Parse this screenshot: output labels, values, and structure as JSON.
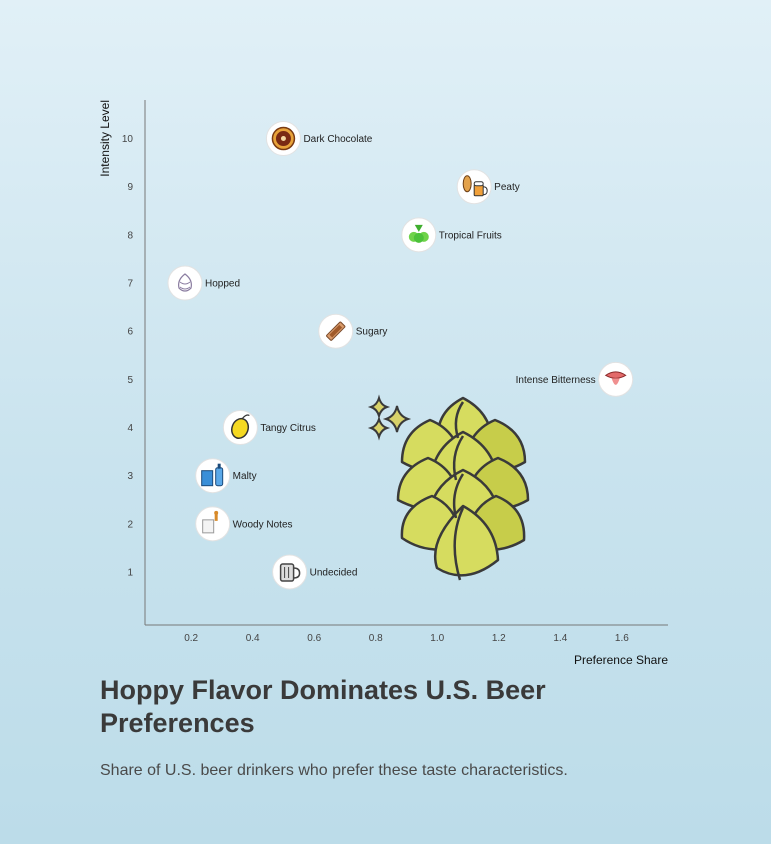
{
  "title": "Hoppy Flavor Dominates U.S. Beer Preferences",
  "subtitle": "Share of U.S. beer drinkers who prefer these taste characteristics.",
  "chart_data": {
    "type": "scatter",
    "xlabel": "Preference Share",
    "ylabel": "Intensity Level",
    "xlim": [
      0.05,
      1.75
    ],
    "ylim": [
      -0.1,
      10.8
    ],
    "xticks": [
      0.2,
      0.4,
      0.6,
      0.8,
      1.0,
      1.2,
      1.4,
      1.6
    ],
    "yticks": [
      1,
      2,
      3,
      4,
      5,
      6,
      7,
      8,
      9,
      10
    ],
    "grid": false,
    "points": [
      {
        "label": "Dark Chocolate",
        "x": 0.5,
        "y": 10,
        "icon": "chocolate-icon",
        "label_side": "right"
      },
      {
        "label": "Peaty",
        "x": 1.12,
        "y": 9,
        "icon": "peaty-beer-icon",
        "label_side": "right"
      },
      {
        "label": "Tropical Fruits",
        "x": 0.94,
        "y": 8,
        "icon": "tropical-fruit-icon",
        "label_side": "right"
      },
      {
        "label": "Hopped",
        "x": 0.18,
        "y": 7,
        "icon": "hop-icon",
        "label_side": "right"
      },
      {
        "label": "Sugary",
        "x": 0.67,
        "y": 6,
        "icon": "candy-bar-icon",
        "label_side": "right"
      },
      {
        "label": "Intense Bitterness",
        "x": 1.58,
        "y": 5,
        "icon": "bitter-tongue-icon",
        "label_side": "left"
      },
      {
        "label": "Tangy Citrus",
        "x": 0.36,
        "y": 4,
        "icon": "lemon-icon",
        "label_side": "right"
      },
      {
        "label": "Malty",
        "x": 0.27,
        "y": 3,
        "icon": "malt-bottle-icon",
        "label_side": "right"
      },
      {
        "label": "Woody Notes",
        "x": 0.27,
        "y": 2,
        "icon": "barrel-tap-icon",
        "label_side": "right"
      },
      {
        "label": "Undecided",
        "x": 0.52,
        "y": 1,
        "icon": "beer-mug-icon",
        "label_side": "right"
      }
    ]
  },
  "decoration": {
    "icon": "hop-cone-illustration",
    "color": "#d6dc5f",
    "outline": "#3a3a3a"
  }
}
